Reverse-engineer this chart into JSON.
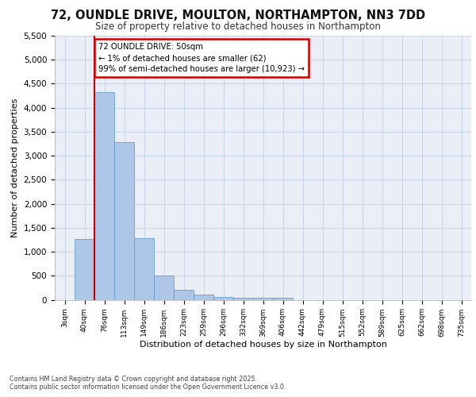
{
  "title": "72, OUNDLE DRIVE, MOULTON, NORTHAMPTON, NN3 7DD",
  "subtitle": "Size of property relative to detached houses in Northampton",
  "xlabel": "Distribution of detached houses by size in Northampton",
  "ylabel": "Number of detached properties",
  "categories": [
    "3sqm",
    "40sqm",
    "76sqm",
    "113sqm",
    "149sqm",
    "186sqm",
    "223sqm",
    "259sqm",
    "296sqm",
    "332sqm",
    "369sqm",
    "406sqm",
    "442sqm",
    "479sqm",
    "515sqm",
    "552sqm",
    "589sqm",
    "625sqm",
    "662sqm",
    "698sqm",
    "735sqm"
  ],
  "bar_values": [
    0,
    1270,
    4330,
    3290,
    1280,
    500,
    215,
    100,
    55,
    40,
    40,
    40,
    0,
    0,
    0,
    0,
    0,
    0,
    0,
    0,
    0
  ],
  "bar_color": "#aec6e8",
  "bar_edge_color": "#6a9fc8",
  "vline_x_index": 1.5,
  "vline_color": "#cc0000",
  "ylim": [
    0,
    5500
  ],
  "yticks": [
    0,
    500,
    1000,
    1500,
    2000,
    2500,
    3000,
    3500,
    4000,
    4500,
    5000,
    5500
  ],
  "annotation_text": "72 OUNDLE DRIVE: 50sqm\n← 1% of detached houses are smaller (62)\n99% of semi-detached houses are larger (10,923) →",
  "annotation_box_color": "#cc0000",
  "grid_color": "#c8d4e8",
  "background_color": "#eaeff7",
  "footer_line1": "Contains HM Land Registry data © Crown copyright and database right 2025.",
  "footer_line2": "Contains public sector information licensed under the Open Government Licence v3.0."
}
